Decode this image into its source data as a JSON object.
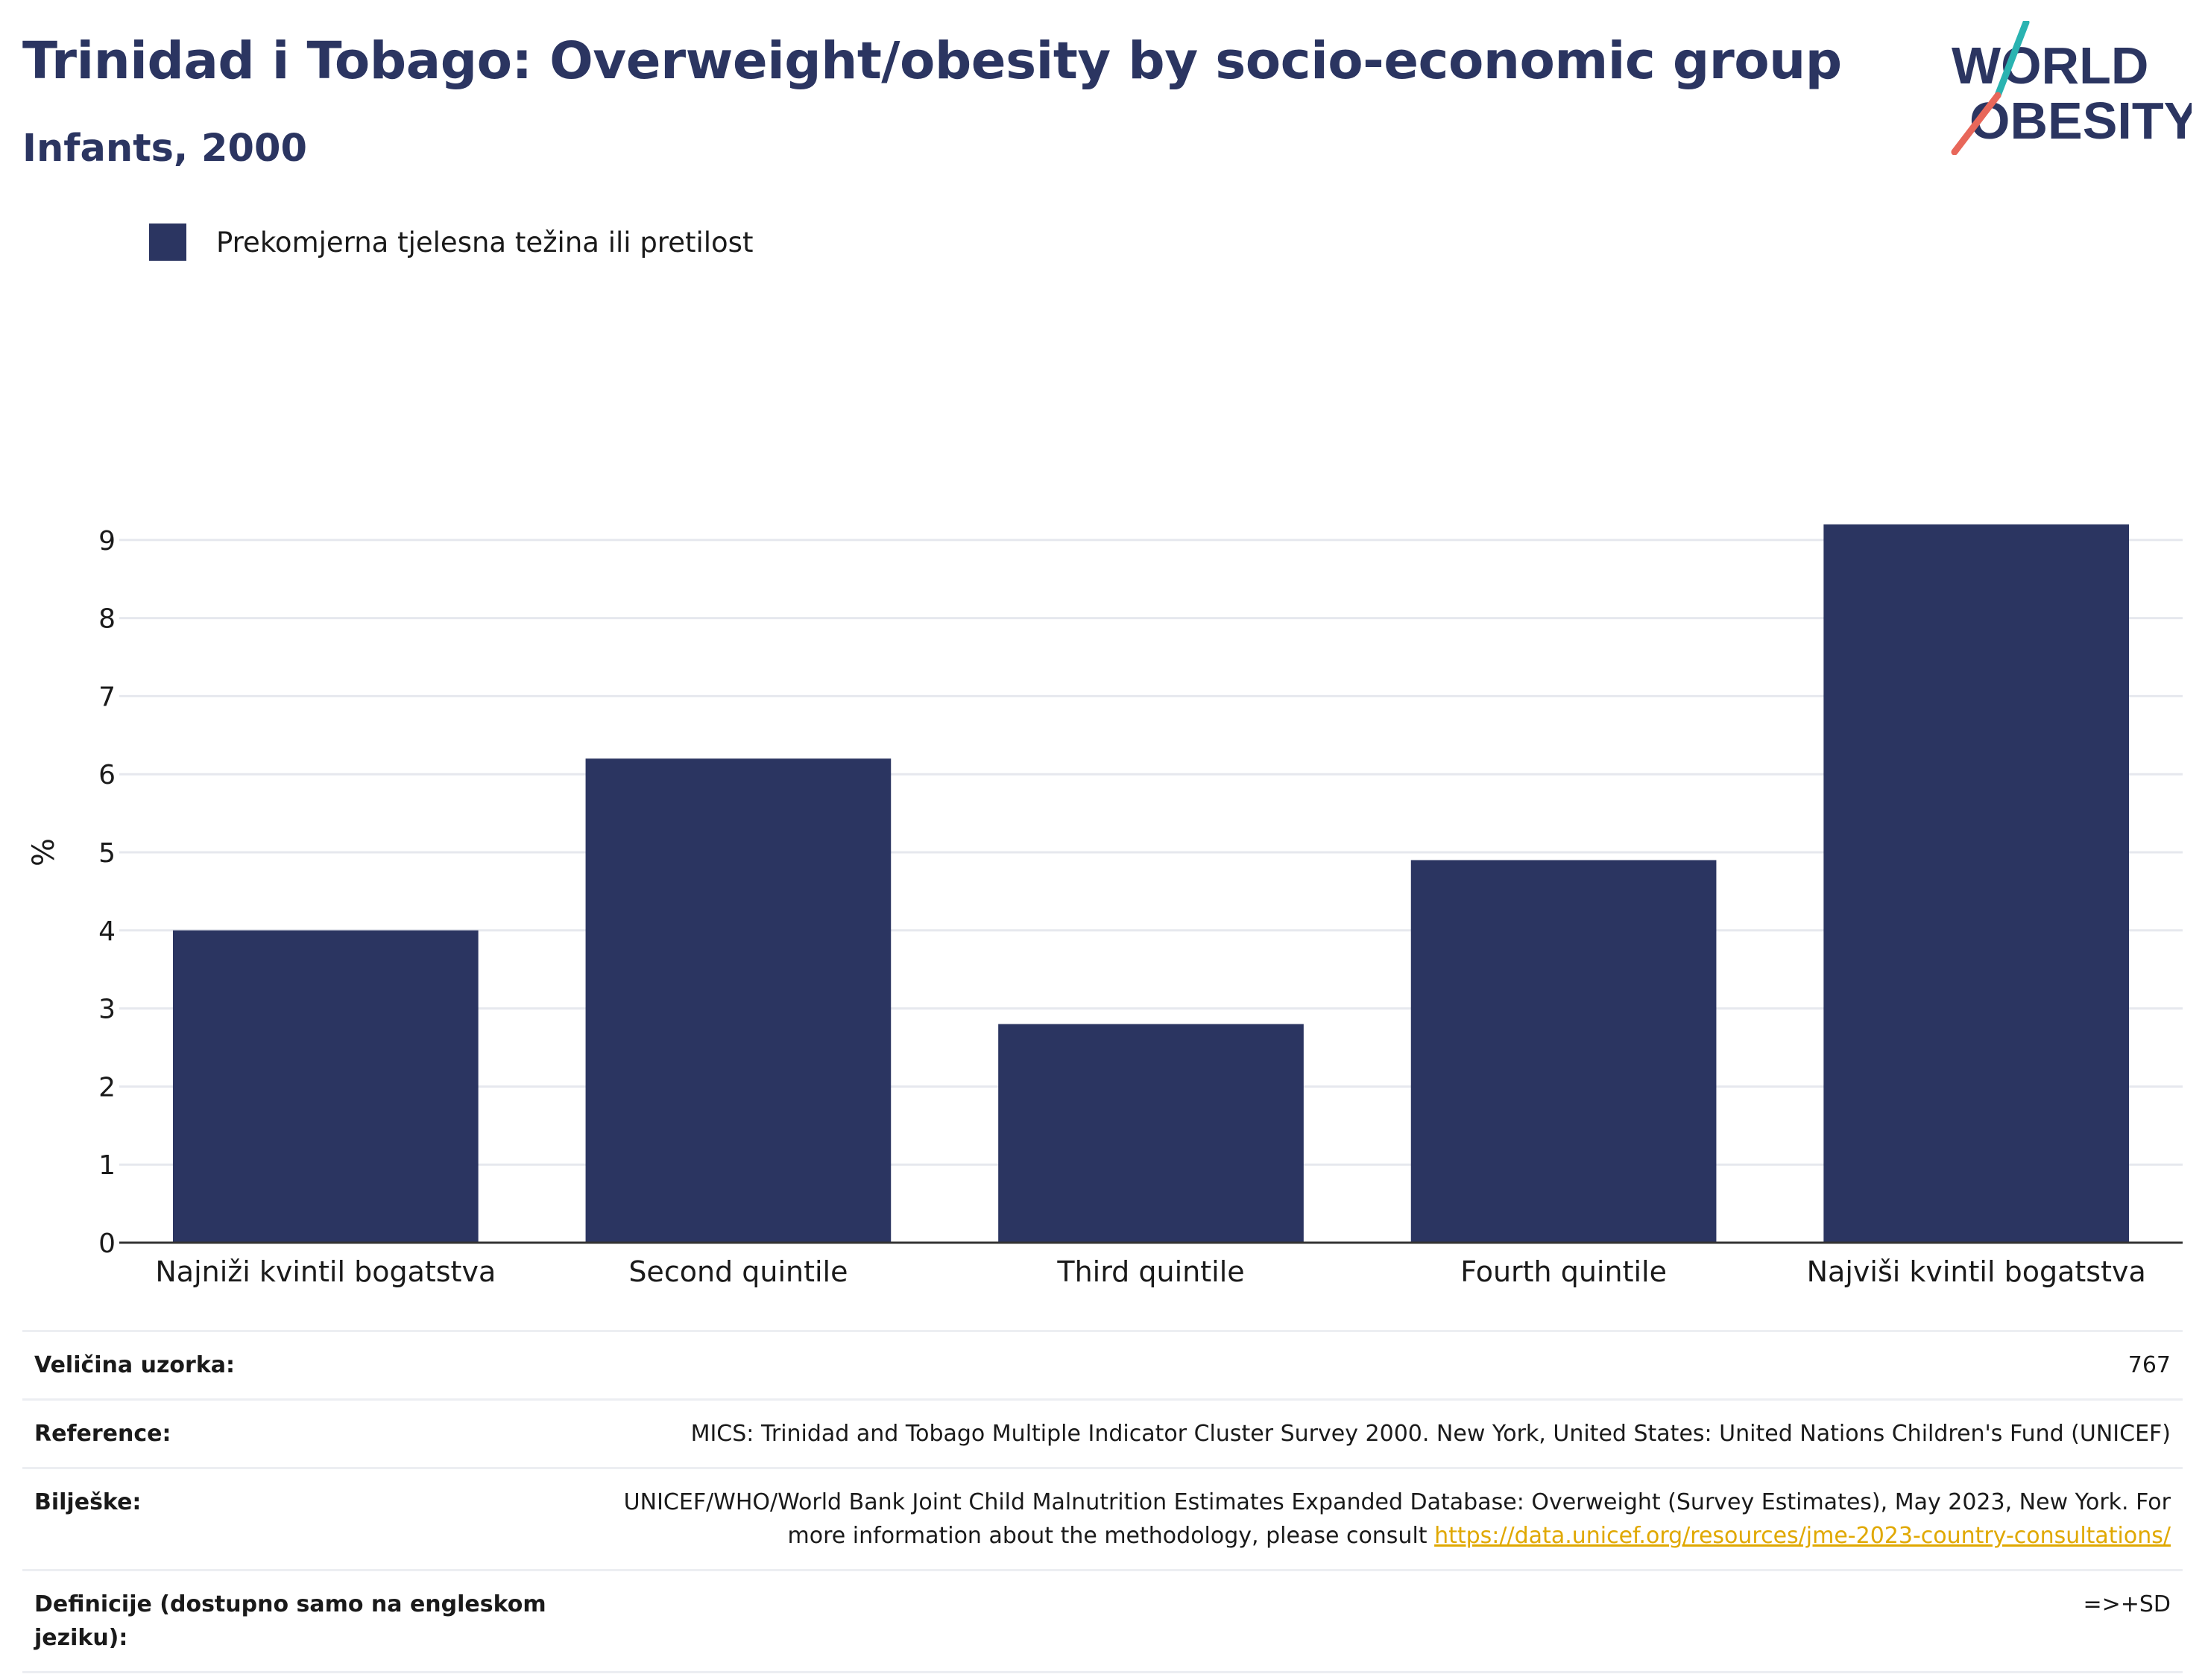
{
  "header": {
    "title": "Trinidad i Tobago: Overweight/obesity by socio-economic group",
    "subtitle": "Infants, 2000"
  },
  "logo": {
    "line1": "WORLD",
    "line2": "OBESITY",
    "colors": {
      "text": "#2b3561",
      "slash_top": "#2ab3b1",
      "slash_bottom": "#e8675a"
    }
  },
  "colors": {
    "bar": "#2b3561",
    "grid": "#e6e8ee",
    "axis": "#333333",
    "link": "#e0a800"
  },
  "chart_data": {
    "type": "bar",
    "categories": [
      "Najniži kvintil bogatstva",
      "Second quintile",
      "Third quintile",
      "Fourth quintile",
      "Najviši kvintil bogatstva"
    ],
    "series": [
      {
        "name": "Prekomjerna tjelesna težina ili pretilost",
        "values": [
          4.0,
          6.2,
          2.8,
          4.9,
          9.2
        ]
      }
    ],
    "ylabel": "%",
    "xlabel": "",
    "ylim": [
      0,
      10
    ],
    "yticks": [
      0,
      1,
      2,
      3,
      4,
      5,
      6,
      7,
      8,
      9
    ],
    "grid": true,
    "legend_position": "top-left"
  },
  "info": {
    "sample_size": {
      "label": "Veličina uzorka:",
      "value": "767"
    },
    "reference": {
      "label": "Reference:",
      "value": "MICS: Trinidad and Tobago Multiple Indicator Cluster Survey 2000. New York, United States: United Nations Children's Fund (UNICEF)"
    },
    "notes": {
      "label": "Bilješke:",
      "text": "UNICEF/WHO/World Bank Joint Child Malnutrition Estimates Expanded Database: Overweight (Survey Estimates), May 2023, New York. For more information about the methodology, please consult ",
      "link": "https://data.unicef.org/resources/jme-2023-country-consultations/"
    },
    "definitions": {
      "label": "Definicije (dostupno samo na engleskom jeziku):",
      "value": "=>+SD"
    }
  }
}
